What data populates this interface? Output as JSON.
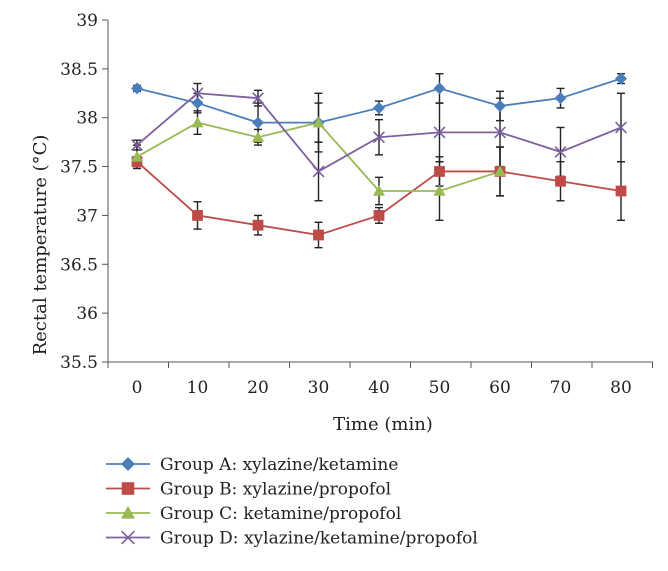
{
  "chart_data": {
    "type": "line",
    "title": "",
    "xlabel": "Time (min)",
    "ylabel": "Rectal temperature (°C)",
    "ylim": [
      35.5,
      39
    ],
    "yticks": [
      "35.5",
      "36",
      "36.5",
      "37",
      "37.5",
      "38",
      "38.5",
      "39"
    ],
    "ytick_values": [
      35.5,
      36,
      36.5,
      37,
      37.5,
      38,
      38.5,
      39
    ],
    "x": [
      0,
      10,
      20,
      30,
      40,
      50,
      60,
      70,
      80
    ],
    "xticks": [
      "0",
      "10",
      "20",
      "30",
      "40",
      "50",
      "60",
      "70",
      "80"
    ],
    "grid": false,
    "legend_position": "bottom",
    "series": [
      {
        "name": "Group A: xylazine/ketamine",
        "color": "#4a7ebb",
        "marker": "diamond",
        "values": [
          38.3,
          38.15,
          37.95,
          37.95,
          38.1,
          38.3,
          38.12,
          38.2,
          38.4
        ],
        "errors": [
          0.03,
          0.1,
          0.2,
          0.3,
          0.07,
          0.15,
          0.15,
          0.1,
          0.05
        ]
      },
      {
        "name": "Group B: xylazine/propofol",
        "color": "#be4b48",
        "marker": "square",
        "values": [
          37.55,
          37.0,
          36.9,
          36.8,
          37.0,
          37.45,
          37.45,
          37.35,
          37.25
        ],
        "errors": [
          0.05,
          0.14,
          0.1,
          0.13,
          0.08,
          0.15,
          0.25,
          0.2,
          0.3
        ]
      },
      {
        "name": "Group C: ketamine/propofol",
        "color": "#98b954",
        "marker": "triangle",
        "values": [
          37.6,
          37.95,
          37.8,
          37.95,
          37.25,
          37.25,
          37.45,
          null,
          null
        ],
        "errors": [
          0.12,
          0.12,
          0.08,
          0.2,
          0.14,
          0.3,
          0.25,
          null,
          null
        ]
      },
      {
        "name": "Group D: xylazine/ketamine/propofol",
        "color": "#7d60a0",
        "marker": "x",
        "values": [
          37.72,
          38.25,
          38.2,
          37.45,
          37.8,
          37.85,
          37.85,
          37.65,
          37.9
        ],
        "errors": [
          0.05,
          0.1,
          0.08,
          0.3,
          0.18,
          0.3,
          0.35,
          0.25,
          0.35
        ]
      }
    ]
  }
}
